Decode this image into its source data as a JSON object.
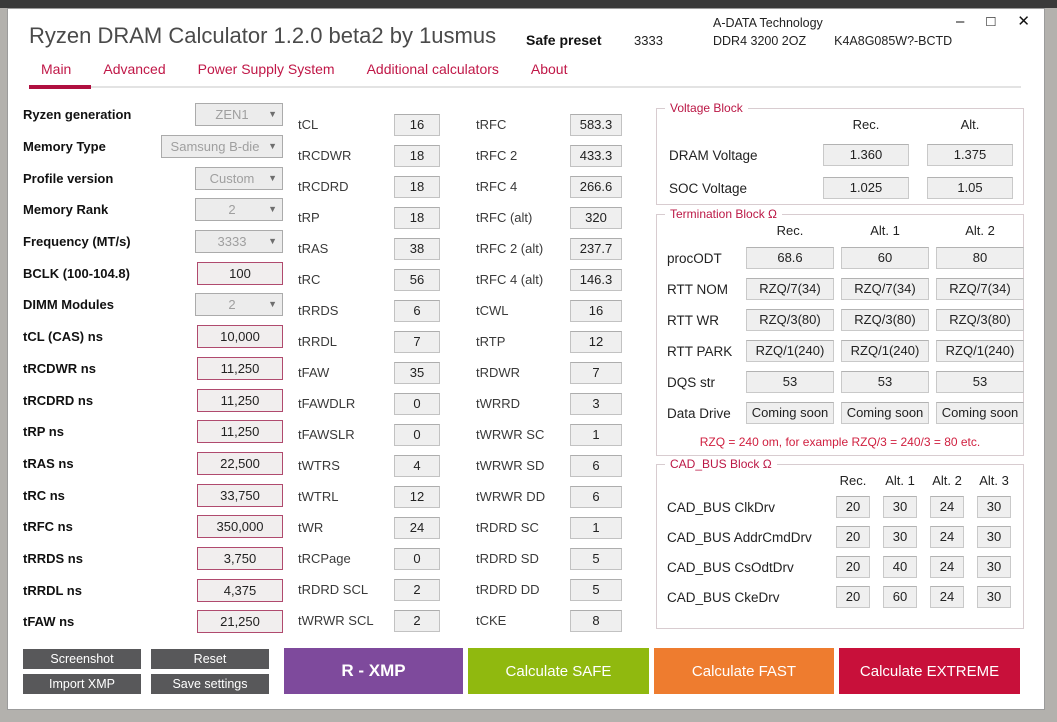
{
  "window": {
    "title": "Ryzen DRAM Calculator 1.2.0 beta2 by 1usmus",
    "preset_label": "Safe preset",
    "preset_value": "3333",
    "ram_vendor": "A-DATA Technology",
    "ram_model": "DDR4 3200 2OZ",
    "ram_part": "K4A8G085W?-BCTD",
    "controls": {
      "minimize": "–",
      "maximize": "□",
      "close": "✕"
    }
  },
  "tabs": [
    {
      "label": "Main",
      "active": true
    },
    {
      "label": "Advanced",
      "active": false
    },
    {
      "label": "Power Supply System",
      "active": false
    },
    {
      "label": "Additional calculators",
      "active": false
    },
    {
      "label": "About",
      "active": false
    }
  ],
  "left_form": {
    "rows": [
      {
        "label": "Ryzen generation",
        "value": "ZEN1",
        "control": "select"
      },
      {
        "label": "Memory Type",
        "value": "Samsung B-die",
        "control": "select",
        "wide": true
      },
      {
        "label": "Profile version",
        "value": "Custom",
        "control": "select"
      },
      {
        "label": "Memory Rank",
        "value": "2",
        "control": "select"
      },
      {
        "label": "Frequency (MT/s)",
        "value": "3333",
        "control": "select"
      },
      {
        "label": "BCLK (100-104.8)",
        "value": "100",
        "control": "input"
      },
      {
        "label": "DIMM Modules",
        "value": "2",
        "control": "select"
      },
      {
        "label": "tCL (CAS) ns",
        "value": "10,000",
        "control": "input"
      },
      {
        "label": "tRCDWR ns",
        "value": "11,250",
        "control": "input"
      },
      {
        "label": "tRCDRD ns",
        "value": "11,250",
        "control": "input"
      },
      {
        "label": "tRP ns",
        "value": "11,250",
        "control": "input"
      },
      {
        "label": "tRAS ns",
        "value": "22,500",
        "control": "input"
      },
      {
        "label": "tRC ns",
        "value": "33,750",
        "control": "input"
      },
      {
        "label": "tRFC ns",
        "value": "350,000",
        "control": "input"
      },
      {
        "label": "tRRDS ns",
        "value": "3,750",
        "control": "input"
      },
      {
        "label": "tRRDL ns",
        "value": "4,375",
        "control": "input"
      },
      {
        "label": "tFAW ns",
        "value": "21,250",
        "control": "input"
      }
    ]
  },
  "timings_col1": [
    {
      "label": "tCL",
      "value": "16"
    },
    {
      "label": "tRCDWR",
      "value": "18"
    },
    {
      "label": "tRCDRD",
      "value": "18"
    },
    {
      "label": "tRP",
      "value": "18"
    },
    {
      "label": "tRAS",
      "value": "38"
    },
    {
      "label": "tRC",
      "value": "56"
    },
    {
      "label": "tRRDS",
      "value": "6"
    },
    {
      "label": "tRRDL",
      "value": "7"
    },
    {
      "label": "tFAW",
      "value": "35"
    },
    {
      "label": "tFAWDLR",
      "value": "0"
    },
    {
      "label": "tFAWSLR",
      "value": "0"
    },
    {
      "label": "tWTRS",
      "value": "4"
    },
    {
      "label": "tWTRL",
      "value": "12"
    },
    {
      "label": "tWR",
      "value": "24"
    },
    {
      "label": "tRCPage",
      "value": "0"
    },
    {
      "label": "tRDRD SCL",
      "value": "2"
    },
    {
      "label": "tWRWR SCL",
      "value": "2"
    }
  ],
  "timings_col2": [
    {
      "label": "tRFC",
      "value": "583.3"
    },
    {
      "label": "tRFC 2",
      "value": "433.3"
    },
    {
      "label": "tRFC 4",
      "value": "266.6"
    },
    {
      "label": "tRFC (alt)",
      "value": "320"
    },
    {
      "label": "tRFC 2 (alt)",
      "value": "237.7"
    },
    {
      "label": "tRFC 4 (alt)",
      "value": "146.3"
    },
    {
      "label": "tCWL",
      "value": "16"
    },
    {
      "label": "tRTP",
      "value": "12"
    },
    {
      "label": "tRDWR",
      "value": "7"
    },
    {
      "label": "tWRRD",
      "value": "3"
    },
    {
      "label": "tWRWR SC",
      "value": "1"
    },
    {
      "label": "tWRWR SD",
      "value": "6"
    },
    {
      "label": "tWRWR DD",
      "value": "6"
    },
    {
      "label": "tRDRD SC",
      "value": "1"
    },
    {
      "label": "tRDRD SD",
      "value": "5"
    },
    {
      "label": "tRDRD DD",
      "value": "5"
    },
    {
      "label": "tCKE",
      "value": "8"
    }
  ],
  "voltage_block": {
    "title": "Voltage Block",
    "headers": [
      "Rec.",
      "Alt."
    ],
    "rows": [
      {
        "label": "DRAM Voltage",
        "values": [
          "1.360",
          "1.375"
        ]
      },
      {
        "label": "SOC Voltage",
        "values": [
          "1.025",
          "1.05"
        ]
      }
    ]
  },
  "termination_block": {
    "title": "Termination Block Ω",
    "headers": [
      "Rec.",
      "Alt. 1",
      "Alt. 2"
    ],
    "rows": [
      {
        "label": "procODT",
        "values": [
          "68.6",
          "60",
          "80"
        ]
      },
      {
        "label": "RTT NOM",
        "values": [
          "RZQ/7(34)",
          "RZQ/7(34)",
          "RZQ/7(34)"
        ]
      },
      {
        "label": "RTT WR",
        "values": [
          "RZQ/3(80)",
          "RZQ/3(80)",
          "RZQ/3(80)"
        ]
      },
      {
        "label": "RTT PARK",
        "values": [
          "RZQ/1(240)",
          "RZQ/1(240)",
          "RZQ/1(240)"
        ]
      },
      {
        "label": "DQS str",
        "values": [
          "53",
          "53",
          "53"
        ]
      },
      {
        "label": "Data Drive",
        "values": [
          "Coming soon",
          "Coming soon",
          "Coming soon"
        ]
      }
    ],
    "note": "RZQ = 240 om, for example RZQ/3 = 240/3 = 80 etc."
  },
  "cad_bus_block": {
    "title": "CAD_BUS Block Ω",
    "headers": [
      "Rec.",
      "Alt. 1",
      "Alt. 2",
      "Alt. 3"
    ],
    "rows": [
      {
        "label": "CAD_BUS ClkDrv",
        "values": [
          "20",
          "30",
          "24",
          "30"
        ]
      },
      {
        "label": "CAD_BUS AddrCmdDrv",
        "values": [
          "20",
          "30",
          "24",
          "30"
        ]
      },
      {
        "label": "CAD_BUS CsOdtDrv",
        "values": [
          "20",
          "40",
          "24",
          "30"
        ]
      },
      {
        "label": "CAD_BUS CkeDrv",
        "values": [
          "20",
          "60",
          "24",
          "30"
        ]
      }
    ]
  },
  "actions": {
    "small_buttons": [
      "Screenshot",
      "Reset",
      "Import XMP",
      "Save settings"
    ],
    "big_buttons": [
      {
        "label": "R - XMP",
        "color": "#7e4a9c",
        "bold": true
      },
      {
        "label": "Calculate SAFE",
        "color": "#90b90f",
        "bold": false
      },
      {
        "label": "Calculate FAST",
        "color": "#ee7c2f",
        "bold": false
      },
      {
        "label": "Calculate EXTREME",
        "color": "#c8103a",
        "bold": false
      }
    ],
    "big_button_widths": [
      179,
      181,
      180,
      181
    ]
  },
  "colors": {
    "accent_crimson": "#c01747",
    "input_border": "#b04a6e",
    "dark_button": "#58585a"
  },
  "icons": {
    "dropdown_arrow": "▼"
  }
}
